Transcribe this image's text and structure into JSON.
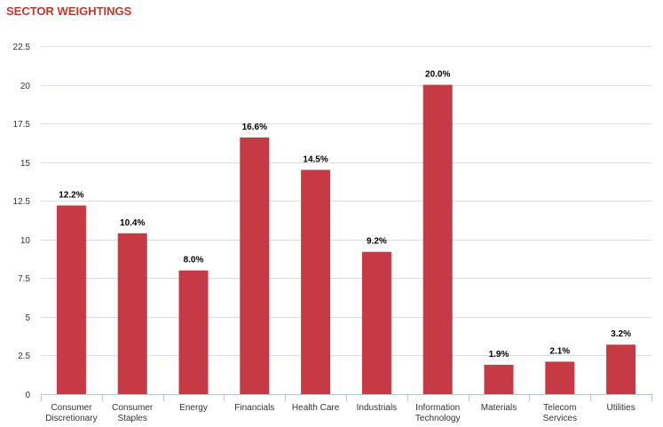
{
  "chart_data": {
    "type": "bar",
    "title": "SECTOR WEIGHTINGS",
    "categories": [
      [
        "Consumer",
        "Discretionary"
      ],
      [
        "Consumer",
        "Staples"
      ],
      [
        "Energy"
      ],
      [
        "Financials"
      ],
      [
        "Health Care"
      ],
      [
        "Industrials"
      ],
      [
        "Information",
        "Technology"
      ],
      [
        "Materials"
      ],
      [
        "Telecom",
        "Services"
      ],
      [
        "Utilities"
      ]
    ],
    "values": [
      12.2,
      10.4,
      8.0,
      16.6,
      14.5,
      9.2,
      20.0,
      1.9,
      2.1,
      3.2
    ],
    "value_labels": [
      "12.2%",
      "10.4%",
      "8.0%",
      "16.6%",
      "14.5%",
      "9.2%",
      "20.0%",
      "1.9%",
      "2.1%",
      "3.2%"
    ],
    "ylim": [
      0,
      22.5
    ],
    "yticks": [
      "0",
      "2.5",
      "5",
      "7.5",
      "10",
      "12.5",
      "15",
      "17.5",
      "20",
      "22.5"
    ],
    "grid": true,
    "colors": {
      "bar": "#c53a44",
      "title": "#c0392b",
      "grid": "#d8dde6",
      "axis": "#b8c2d0"
    }
  }
}
